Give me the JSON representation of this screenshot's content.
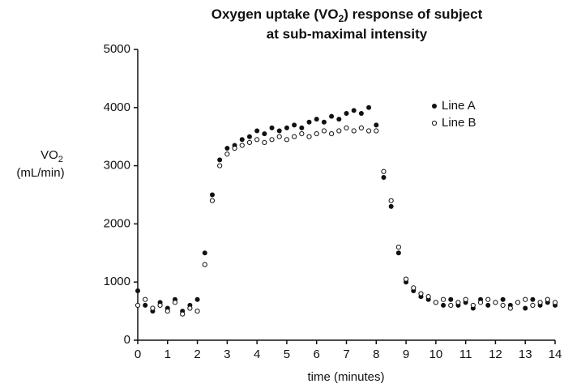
{
  "chart_data": {
    "type": "scatter",
    "title": [
      "Oxygen uptake (VO",
      "2",
      ") response of subject",
      "at sub-maximal intensity"
    ],
    "ylabel": [
      "VO",
      "2",
      "(mL/min)"
    ],
    "xlabel": "time (minutes)",
    "xlim": [
      0,
      14
    ],
    "ylim": [
      0,
      5000
    ],
    "xticks": [
      0,
      1,
      2,
      3,
      4,
      5,
      6,
      7,
      8,
      9,
      10,
      11,
      12,
      13,
      14
    ],
    "yticks": [
      0,
      1000,
      2000,
      3000,
      4000,
      5000
    ],
    "grid": false,
    "legend": "upper right",
    "x": [
      0,
      0.25,
      0.5,
      0.75,
      1,
      1.25,
      1.5,
      1.75,
      2,
      2.25,
      2.5,
      2.75,
      3,
      3.25,
      3.5,
      3.75,
      4,
      4.25,
      4.5,
      4.75,
      5,
      5.25,
      5.5,
      5.75,
      6,
      6.25,
      6.5,
      6.75,
      7,
      7.25,
      7.5,
      7.75,
      8,
      8.25,
      8.5,
      8.75,
      9,
      9.25,
      9.5,
      9.75,
      10,
      10.25,
      10.5,
      10.75,
      11,
      11.25,
      11.5,
      11.75,
      12,
      12.25,
      12.5,
      12.75,
      13,
      13.25,
      13.5,
      13.75,
      14
    ],
    "series": [
      {
        "name": "Line A",
        "color": "#111111",
        "marker": "filled",
        "values": [
          850,
          600,
          500,
          650,
          550,
          700,
          500,
          600,
          700,
          1500,
          2500,
          3100,
          3300,
          3350,
          3450,
          3500,
          3600,
          3550,
          3650,
          3600,
          3650,
          3700,
          3650,
          3750,
          3800,
          3750,
          3850,
          3800,
          3900,
          3950,
          3900,
          4000,
          3700,
          2800,
          2300,
          1500,
          1000,
          850,
          750,
          700,
          650,
          600,
          700,
          600,
          650,
          550,
          700,
          600,
          650,
          700,
          600,
          650,
          550,
          700,
          600,
          650,
          600
        ]
      },
      {
        "name": "Line B",
        "color": "#111111",
        "marker": "open",
        "values": [
          600,
          700,
          550,
          600,
          500,
          650,
          450,
          550,
          500,
          1300,
          2400,
          3000,
          3200,
          3300,
          3350,
          3400,
          3450,
          3400,
          3450,
          3500,
          3450,
          3500,
          3550,
          3500,
          3550,
          3600,
          3550,
          3600,
          3650,
          3600,
          3650,
          3600,
          3600,
          2900,
          2400,
          1600,
          1050,
          900,
          800,
          750,
          650,
          700,
          600,
          650,
          700,
          600,
          650,
          700,
          650,
          600,
          550,
          650,
          700,
          600,
          650,
          700,
          650
        ]
      }
    ]
  }
}
